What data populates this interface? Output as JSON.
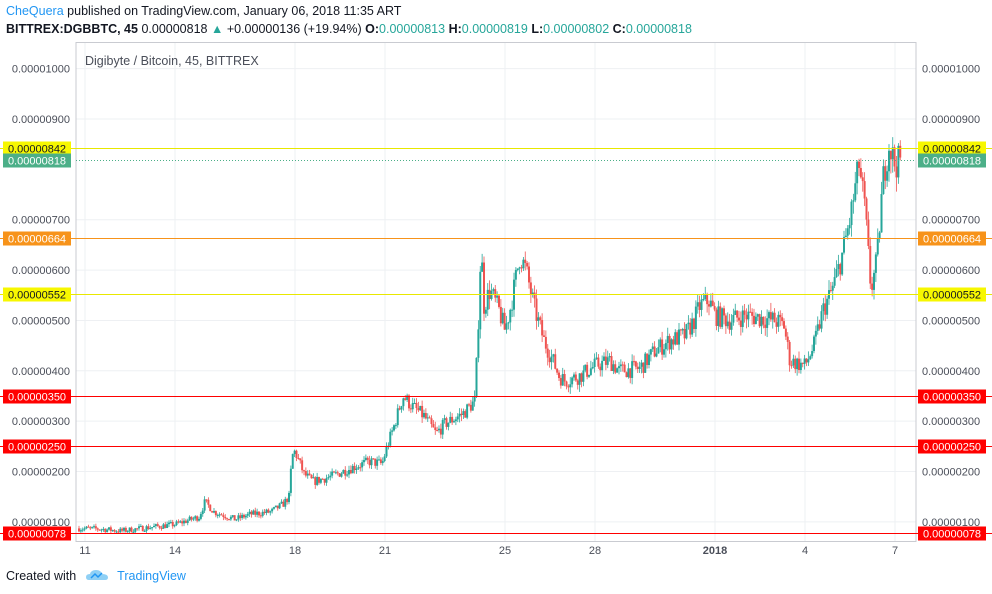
{
  "header": {
    "author": "CheQuera",
    "published_text": "published on TradingView.com, January 06, 2018 11:35 ART",
    "symbol": "BITTREX:DGBBTC, 45",
    "last": "0.00000818",
    "change_arrow": "▲",
    "change": "+0.00000136 (+19.94%)",
    "o_label": "O:",
    "o_value": "0.00000813",
    "h_label": "H:",
    "h_value": "0.00000819",
    "l_label": "L:",
    "l_value": "0.00000802",
    "c_label": "C:",
    "c_value": "0.00000818"
  },
  "footer": {
    "created_with": "Created with",
    "brand": "TradingView",
    "logo_icon": "tradingview-cloud-icon"
  },
  "colors": {
    "up": "#26a69a",
    "down": "#ef5350",
    "yellow": "#f7f700",
    "orange": "#f7931a",
    "red": "#ff0000",
    "last": "#4caf88"
  },
  "chart_data": {
    "type": "candlestick",
    "title": "Digibyte / Bitcoin, 45, BITTREX",
    "y_ticks": [
      "0.00000100",
      "0.00000200",
      "0.00000300",
      "0.00000400",
      "0.00000500",
      "0.00000600",
      "0.00000700",
      "0.00000900",
      "0.00001000"
    ],
    "ylim": [
      6.2e-07,
      1.053e-05
    ],
    "x_ticks": [
      "11",
      "14",
      "18",
      "21",
      "25",
      "28",
      "2018",
      "4",
      "7"
    ],
    "x_tick_days": [
      0,
      3,
      7,
      10,
      14,
      17,
      21,
      24,
      27
    ],
    "x_range_days": [
      -0.3,
      27.7
    ],
    "x_axis_note": "days counted from Dec 11 2017",
    "grid": true,
    "horizontal_levels": [
      {
        "value": 8.42e-06,
        "label": "0.00000842",
        "color": "yellow"
      },
      {
        "value": 6.64e-06,
        "label": "0.00000664",
        "color": "orange"
      },
      {
        "value": 5.52e-06,
        "label": "0.00000552",
        "color": "yellow"
      },
      {
        "value": 3.5e-06,
        "label": "0.00000350",
        "color": "red"
      },
      {
        "value": 2.5e-06,
        "label": "0.00000250",
        "color": "red"
      },
      {
        "value": 7.8e-07,
        "label": "0.00000078",
        "color": "red"
      }
    ],
    "last_price": {
      "value": 8.18e-06,
      "label": "0.00000818"
    },
    "price_path": [
      [
        -0.2,
        0.87
      ],
      [
        0.5,
        0.86
      ],
      [
        1.2,
        0.82
      ],
      [
        2.0,
        0.88
      ],
      [
        3.0,
        0.95
      ],
      [
        3.8,
        1.1
      ],
      [
        4.0,
        1.4
      ],
      [
        4.3,
        1.2
      ],
      [
        5.0,
        1.05
      ],
      [
        5.5,
        1.15
      ],
      [
        6.2,
        1.2
      ],
      [
        6.6,
        1.35
      ],
      [
        6.8,
        1.5
      ],
      [
        6.9,
        2.3
      ],
      [
        7.0,
        2.4
      ],
      [
        7.3,
        1.95
      ],
      [
        7.6,
        1.8
      ],
      [
        8.2,
        1.9
      ],
      [
        9.0,
        2.1
      ],
      [
        9.5,
        2.2
      ],
      [
        9.9,
        2.15
      ],
      [
        10.1,
        2.55
      ],
      [
        10.3,
        2.9
      ],
      [
        10.6,
        3.5
      ],
      [
        10.9,
        3.3
      ],
      [
        11.3,
        3.1
      ],
      [
        11.7,
        2.75
      ],
      [
        12.0,
        2.95
      ],
      [
        12.6,
        3.15
      ],
      [
        13.0,
        3.4
      ],
      [
        13.1,
        4.8
      ],
      [
        13.2,
        6.5
      ],
      [
        13.3,
        5.3
      ],
      [
        13.5,
        5.6
      ],
      [
        13.8,
        5.2
      ],
      [
        14.0,
        4.8
      ],
      [
        14.2,
        5.3
      ],
      [
        14.5,
        6.3
      ],
      [
        14.7,
        6.0
      ],
      [
        15.0,
        5.2
      ],
      [
        15.3,
        4.6
      ],
      [
        15.6,
        4.2
      ],
      [
        15.8,
        3.9
      ],
      [
        16.0,
        3.8
      ],
      [
        16.5,
        3.9
      ],
      [
        17.0,
        4.1
      ],
      [
        17.5,
        4.2
      ],
      [
        17.8,
        4.0
      ],
      [
        18.5,
        4.05
      ],
      [
        19.0,
        4.4
      ],
      [
        19.5,
        4.6
      ],
      [
        20.0,
        4.7
      ],
      [
        20.3,
        5.0
      ],
      [
        20.5,
        5.3
      ],
      [
        20.8,
        5.4
      ],
      [
        21.0,
        5.1
      ],
      [
        21.5,
        5.0
      ],
      [
        22.0,
        5.1
      ],
      [
        22.5,
        5.05
      ],
      [
        23.0,
        5.0
      ],
      [
        23.3,
        4.9
      ],
      [
        23.5,
        4.2
      ],
      [
        24.0,
        4.1
      ],
      [
        24.3,
        4.5
      ],
      [
        24.6,
        5.2
      ],
      [
        24.9,
        5.6
      ],
      [
        25.2,
        6.2
      ],
      [
        25.5,
        7.0
      ],
      [
        25.8,
        8.1
      ],
      [
        26.0,
        7.2
      ],
      [
        26.2,
        5.6
      ],
      [
        26.4,
        6.2
      ],
      [
        26.6,
        7.8
      ],
      [
        26.8,
        8.5
      ],
      [
        27.0,
        8.1
      ],
      [
        27.2,
        8.2
      ]
    ]
  }
}
